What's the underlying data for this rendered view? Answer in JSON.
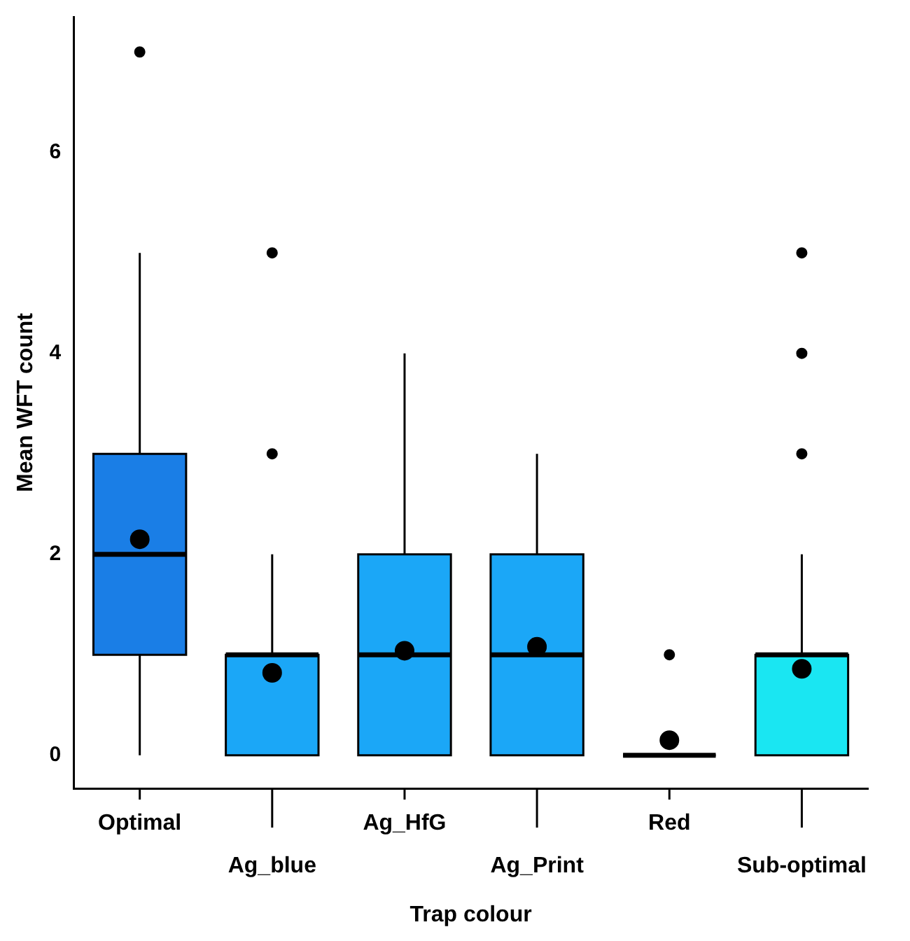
{
  "chart_data": {
    "type": "box",
    "xlabel": "Trap colour",
    "ylabel": "Mean WFT count",
    "categories": [
      "Optimal",
      "Ag_blue",
      "Ag_HfG",
      "Ag_Print",
      "Red",
      "Sub-optimal"
    ],
    "colors": [
      "#1a7ee6",
      "#1ba7f7",
      "#1ba7f7",
      "#1ba7f7",
      "#000000",
      "#1ae6f2"
    ],
    "boxes": [
      {
        "low": 0,
        "q1": 1,
        "median": 2,
        "q3": 3,
        "high": 5,
        "mean": 2.15,
        "outliers": [
          7
        ]
      },
      {
        "low": 0,
        "q1": 0,
        "median": 1,
        "q3": 1,
        "high": 2,
        "mean": 0.82,
        "outliers": [
          3,
          5
        ]
      },
      {
        "low": 0,
        "q1": 0,
        "median": 1,
        "q3": 2,
        "high": 4,
        "mean": 1.04
      },
      {
        "low": 0,
        "q1": 0,
        "median": 1,
        "q3": 2,
        "high": 3,
        "mean": 1.08
      },
      {
        "low": 0,
        "q1": 0,
        "median": 0,
        "q3": 0,
        "high": 0,
        "mean": 0.15,
        "outliers": [
          1
        ]
      },
      {
        "low": 0,
        "q1": 0,
        "median": 1,
        "q3": 1,
        "high": 2,
        "mean": 0.86,
        "outliers": [
          3,
          4,
          5
        ]
      }
    ],
    "ylim": [
      -0.33,
      7.35
    ],
    "yticks": [
      0,
      2,
      4,
      6
    ],
    "grid": false
  }
}
